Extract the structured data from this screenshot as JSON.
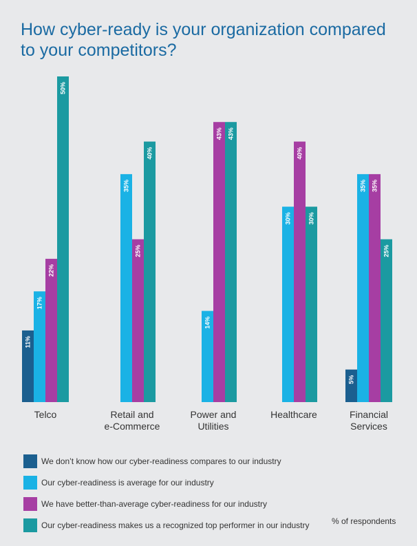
{
  "chart_data": {
    "type": "bar",
    "title": "How cyber-ready is your organization compared to your competitors?",
    "categories": [
      [
        "Telco"
      ],
      [
        "Retail and",
        "e-Commerce"
      ],
      [
        "Power and",
        "Utilities"
      ],
      [
        "Healthcare"
      ],
      [
        "Financial",
        "Services"
      ]
    ],
    "series": [
      {
        "name": "We don’t know how our cyber-readiness compares to our industry",
        "color": "#1b5f8f",
        "values": [
          11,
          null,
          null,
          null,
          5
        ]
      },
      {
        "name": "Our cyber-readiness is average for our industry",
        "color": "#1ab2e5",
        "values": [
          17,
          35,
          14,
          30,
          35
        ]
      },
      {
        "name": "We have better-than-average cyber-readiness for our industry",
        "color": "#a63ea3",
        "values": [
          22,
          25,
          43,
          40,
          35
        ]
      },
      {
        "name": "Our cyber-readiness makes us a recognized top performer in our industry",
        "color": "#1b9aa1",
        "values": [
          50,
          40,
          43,
          30,
          25
        ]
      }
    ],
    "value_suffix": "%",
    "ylabel": "% of respondents",
    "ylim": [
      0,
      50
    ]
  }
}
